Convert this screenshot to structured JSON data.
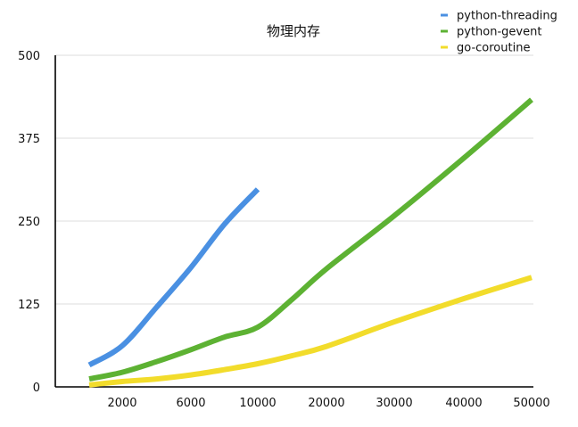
{
  "chart_data": {
    "type": "line",
    "title": "物理内存",
    "xlabel": "",
    "ylabel": "",
    "categories": [
      "2000",
      "6000",
      "10000",
      "20000",
      "30000",
      "40000",
      "50000"
    ],
    "ylim": [
      0,
      500
    ],
    "yticks": [
      "0",
      "125",
      "250",
      "375",
      "500"
    ],
    "grid": true,
    "legend_position": "top-right",
    "series": [
      {
        "name": "python-threading",
        "color": "#4a90e2",
        "x": [
          1000,
          2000,
          4000,
          6000,
          8000,
          10000
        ],
        "values": [
          33,
          62,
          120,
          180,
          245,
          298
        ]
      },
      {
        "name": "python-gevent",
        "color": "#5db233",
        "x": [
          1000,
          2000,
          4000,
          6000,
          8000,
          10000,
          15000,
          20000,
          30000,
          40000,
          50000
        ],
        "values": [
          12,
          22,
          38,
          56,
          75,
          90,
          132,
          178,
          258,
          345,
          433
        ]
      },
      {
        "name": "go-coroutine",
        "color": "#f2dc2b",
        "x": [
          1000,
          2000,
          4000,
          6000,
          8000,
          10000,
          15000,
          20000,
          30000,
          40000,
          50000
        ],
        "values": [
          3,
          8,
          12,
          18,
          26,
          35,
          47,
          61,
          98,
          133,
          165
        ]
      }
    ]
  }
}
